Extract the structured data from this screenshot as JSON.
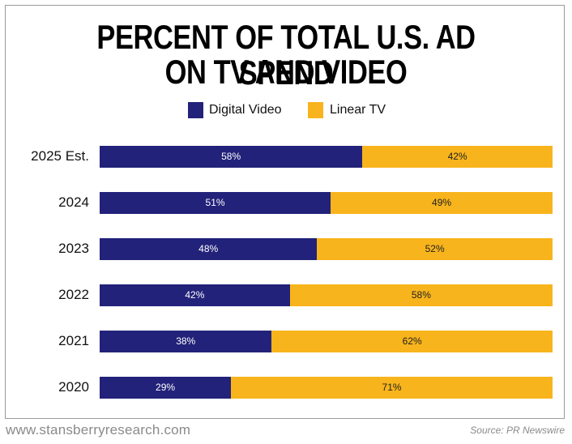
{
  "chart_data": {
    "type": "bar",
    "orientation": "horizontal",
    "stacked": true,
    "title_lines": [
      "PERCENT OF TOTAL U.S. AD SPEND",
      "ON TV AND VIDEO"
    ],
    "categories": [
      "2025 Est.",
      "2024",
      "2023",
      "2022",
      "2021",
      "2020"
    ],
    "series": [
      {
        "name": "Digital Video",
        "color": "#22227a",
        "label_color": "#ffffff",
        "values": [
          58,
          51,
          48,
          42,
          38,
          29
        ]
      },
      {
        "name": "Linear TV",
        "color": "#f8b41c",
        "label_color": "#222222",
        "values": [
          42,
          49,
          52,
          58,
          62,
          71
        ]
      }
    ],
    "value_suffix": "%",
    "xlim": [
      0,
      100
    ],
    "xlabel": "",
    "ylabel": "",
    "grid": false,
    "legend_position": "top-center"
  },
  "footer": {
    "website": "www.stansberryresearch.com",
    "source": "Source: PR Newswire"
  }
}
